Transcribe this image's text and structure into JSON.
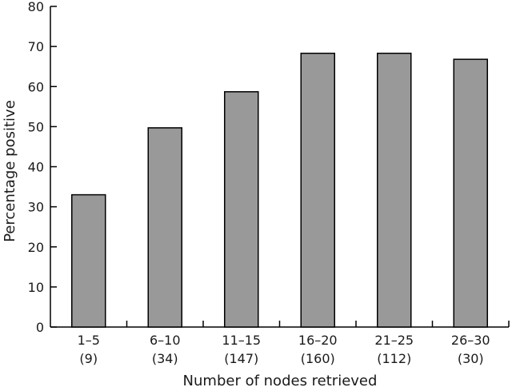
{
  "chart_data": {
    "type": "bar",
    "title": "",
    "xlabel": "Number of nodes retrieved",
    "ylabel": "Percentage positive",
    "ylim": [
      0,
      80
    ],
    "yticks": [
      0,
      10,
      20,
      30,
      40,
      50,
      60,
      70,
      80
    ],
    "categories": [
      "1–5",
      "6–10",
      "11–15",
      "16–20",
      "21–25",
      "26–30"
    ],
    "category_counts": [
      "(9)",
      "(34)",
      "(147)",
      "(160)",
      "(112)",
      "(30)"
    ],
    "values": [
      33,
      49.7,
      58.7,
      68.3,
      68.3,
      66.8
    ],
    "grid": false,
    "bar_color": "#999999",
    "bar_edge_color": "#000000"
  }
}
